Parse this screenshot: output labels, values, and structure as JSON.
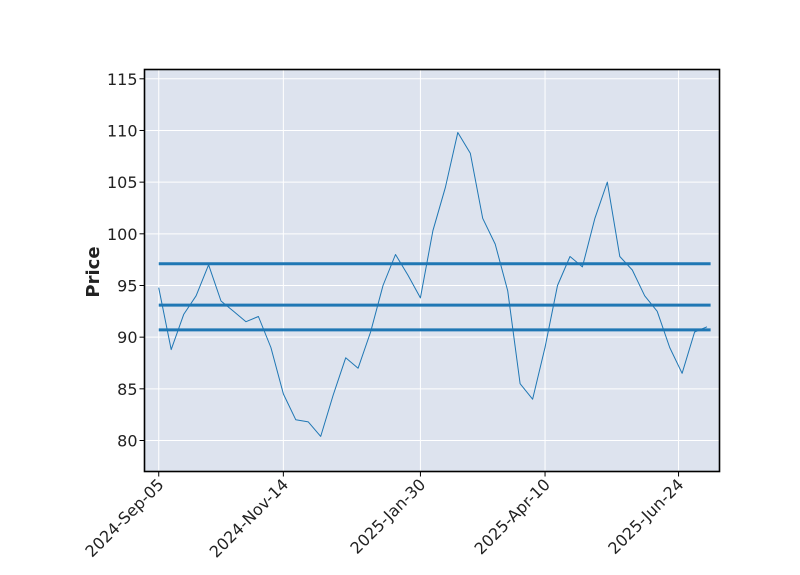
{
  "chart_data": {
    "type": "line",
    "title": "",
    "xlabel": "",
    "ylabel": "Price",
    "ylim": [
      77.0,
      115.9
    ],
    "xlim": [
      "2024-08-28",
      "2025-07-17"
    ],
    "grid": true,
    "legend": "none",
    "colors": {
      "background": "#dde3ee",
      "grid": "#ffffff",
      "series": "#1f77b4",
      "hlines": "#1f77b4",
      "frame": "#000000"
    },
    "y_ticks": [
      80,
      85,
      90,
      95,
      100,
      105,
      110,
      115
    ],
    "x_ticks": [
      "2024-Sep-05",
      "2024-Nov-14",
      "2025-Jan-30",
      "2025-Apr-10",
      "2025-Jun-24"
    ],
    "series": [
      {
        "x": [
          "2024-09-05",
          "2024-09-12",
          "2024-09-19",
          "2024-09-26",
          "2024-10-03",
          "2024-10-10",
          "2024-10-17",
          "2024-10-24",
          "2024-10-31",
          "2024-11-07",
          "2024-11-14",
          "2024-11-21",
          "2024-11-28",
          "2024-12-05",
          "2024-12-12",
          "2024-12-19",
          "2024-12-26",
          "2025-01-02",
          "2025-01-09",
          "2025-01-16",
          "2025-01-23",
          "2025-01-30",
          "2025-02-06",
          "2025-02-13",
          "2025-02-20",
          "2025-02-27",
          "2025-03-06",
          "2025-03-13",
          "2025-03-20",
          "2025-03-27",
          "2025-04-03",
          "2025-04-10",
          "2025-04-17",
          "2025-04-24",
          "2025-05-01",
          "2025-05-08",
          "2025-05-15",
          "2025-05-22",
          "2025-05-29",
          "2025-06-05",
          "2025-06-12",
          "2025-06-19",
          "2025-06-26",
          "2025-07-03",
          "2025-07-10"
        ],
        "values": [
          94.8,
          88.8,
          92.2,
          94.0,
          97.0,
          93.5,
          92.5,
          91.5,
          92.0,
          89.0,
          84.5,
          82.0,
          81.8,
          80.4,
          84.4,
          88.0,
          87.0,
          90.5,
          95.0,
          98.0,
          96.0,
          93.8,
          100.3,
          104.5,
          109.8,
          107.8,
          101.5,
          99.0,
          94.5,
          85.5,
          84.0,
          89.0,
          95.0,
          97.8,
          96.8,
          101.5,
          105.0,
          97.8,
          96.5,
          94.0,
          92.5,
          89.0,
          86.5,
          90.5,
          91.0
        ]
      }
    ],
    "hlines": [
      97.1,
      93.1,
      90.7
    ],
    "hline_span": [
      "2024-09-05",
      "2025-07-12"
    ]
  }
}
